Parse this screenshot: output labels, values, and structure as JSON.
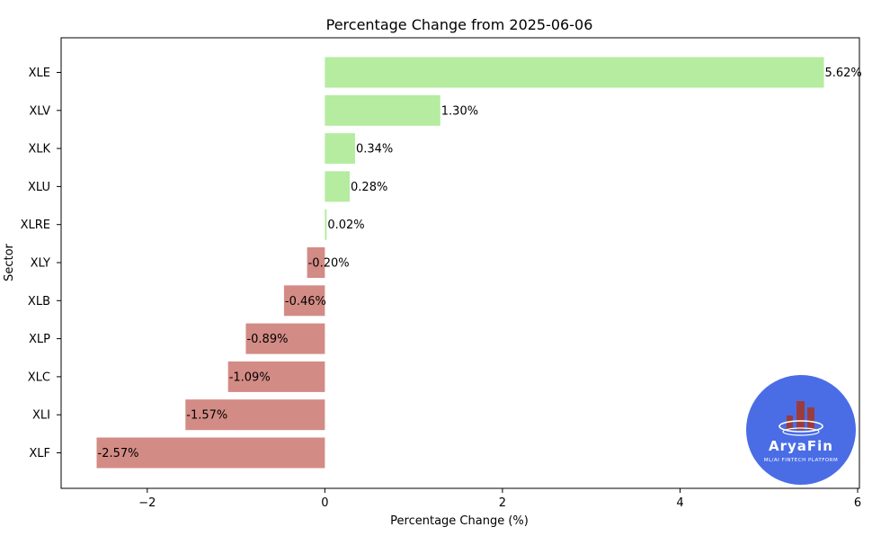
{
  "chart_data": {
    "type": "bar",
    "orientation": "horizontal",
    "title": "Percentage Change from 2025-06-06",
    "xlabel": "Percentage Change (%)",
    "ylabel": "Sector",
    "xlim": [
      -2.97,
      6.02
    ],
    "xticks": [
      -2,
      0,
      2,
      4,
      6
    ],
    "xtick_labels": [
      "−2",
      "0",
      "2",
      "4",
      "6"
    ],
    "grid": false,
    "categories": [
      "XLE",
      "XLV",
      "XLK",
      "XLU",
      "XLRE",
      "XLY",
      "XLB",
      "XLP",
      "XLC",
      "XLI",
      "XLF"
    ],
    "values": [
      5.62,
      1.3,
      0.34,
      0.28,
      0.02,
      -0.2,
      -0.46,
      -0.89,
      -1.09,
      -1.57,
      -2.57
    ],
    "value_labels": [
      "5.62%",
      "1.30%",
      "0.34%",
      "0.28%",
      "0.02%",
      "-0.20%",
      "-0.46%",
      "-0.89%",
      "-1.09%",
      "-1.57%",
      "-2.57%"
    ],
    "colors": {
      "positive": "#b5eca0",
      "negative": "#d38b85"
    }
  },
  "logo": {
    "name": "AryaFin",
    "tagline": "ML/AI FINTECH PLATFORM",
    "background": "#4a6de5",
    "bar_color": "#9b3c3c"
  }
}
